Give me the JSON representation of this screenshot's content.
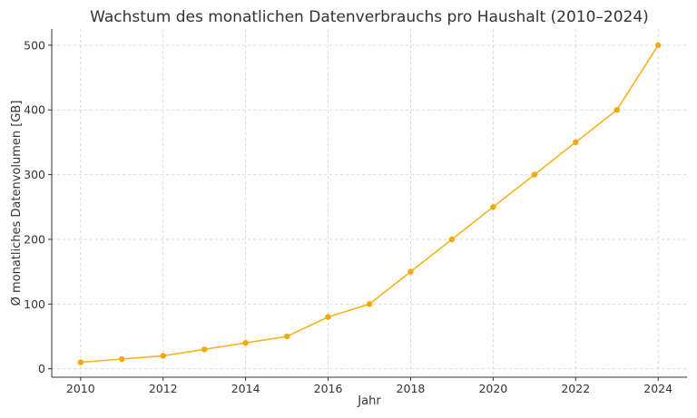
{
  "chart_data": {
    "type": "line",
    "title": "Wachstum des monatlichen Datenverbrauchs pro Haushalt (2010–2024)",
    "xlabel": "Jahr",
    "ylabel": "Ø monatliches Datenvolumen [GB]",
    "x": [
      2010,
      2011,
      2012,
      2013,
      2014,
      2015,
      2016,
      2017,
      2018,
      2019,
      2020,
      2021,
      2022,
      2023,
      2024
    ],
    "series": [
      {
        "values": [
          10,
          15,
          20,
          30,
          40,
          50,
          80,
          100,
          150,
          200,
          250,
          300,
          350,
          400,
          500
        ]
      }
    ],
    "xticks": [
      2010,
      2012,
      2014,
      2016,
      2018,
      2020,
      2022,
      2024
    ],
    "yticks": [
      0,
      100,
      200,
      300,
      400,
      500
    ],
    "xlim": [
      2009.3,
      2024.7
    ],
    "ylim": [
      -13,
      525
    ],
    "grid": true,
    "colors": {
      "line": "#f5b41a",
      "marker": "#f5a800"
    }
  }
}
